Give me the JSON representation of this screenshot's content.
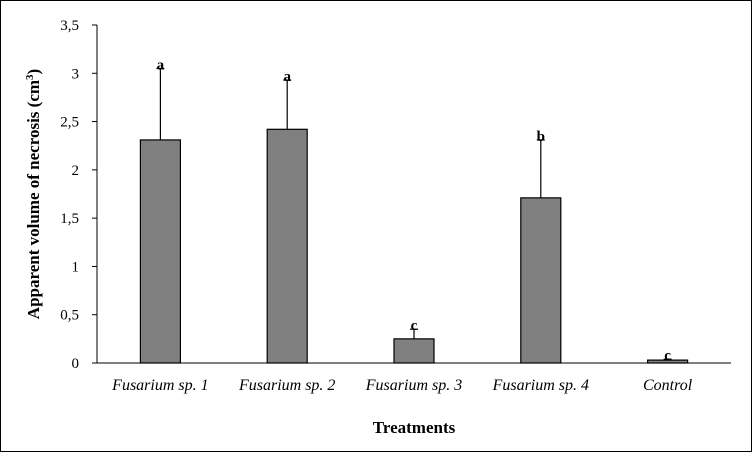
{
  "chart_data": {
    "type": "bar",
    "categories": [
      "Fusarium sp. 1",
      "Fusarium sp. 2",
      "Fusarium sp. 3",
      "Fusarium sp. 4",
      "Control"
    ],
    "values": [
      2.31,
      2.42,
      0.25,
      1.71,
      0.03
    ],
    "error_upper": [
      0.74,
      0.51,
      0.1,
      0.6,
      0.01
    ],
    "significance": [
      "a",
      "a",
      "c",
      "b",
      "c"
    ],
    "title": "",
    "xlabel": "Treatments",
    "ylabel_main": "Apparent volume of necrosis (cm",
    "ylabel_sup": "3",
    "ylabel_end": ")",
    "ylim": [
      0,
      3.5
    ],
    "ytick_values": [
      0,
      0.5,
      1,
      1.5,
      2,
      2.5,
      3,
      3.5
    ],
    "yticks": [
      "0",
      "0,5",
      "1",
      "1,5",
      "2",
      "2,5",
      "3",
      "3,5"
    ],
    "grid": false,
    "legend": "none",
    "bar_color": "#808080",
    "edge_color": "#000000"
  }
}
